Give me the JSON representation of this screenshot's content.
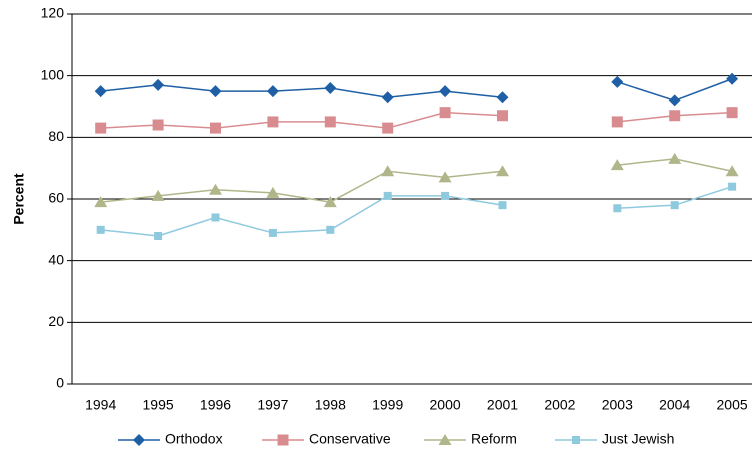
{
  "chart_data": {
    "type": "line",
    "y_label": "Percent",
    "categories": [
      "1994",
      "1995",
      "1996",
      "1997",
      "1998",
      "1999",
      "2000",
      "2001",
      "2002",
      "2003",
      "2004",
      "2005"
    ],
    "series": [
      {
        "name": "Orthodox",
        "color": "#1f5fa6",
        "marker": "diamond",
        "values": [
          95,
          97,
          95,
          95,
          96,
          93,
          95,
          93,
          null,
          98,
          92,
          99
        ]
      },
      {
        "name": "Conservative",
        "color": "#d98c8f",
        "marker": "square",
        "values": [
          83,
          84,
          83,
          85,
          85,
          83,
          88,
          87,
          null,
          85,
          87,
          88
        ]
      },
      {
        "name": "Reform",
        "color": "#b1b58a",
        "marker": "triangle",
        "values": [
          59,
          61,
          63,
          62,
          59,
          69,
          67,
          69,
          null,
          71,
          73,
          69
        ]
      },
      {
        "name": "Just Jewish",
        "color": "#8ec9de",
        "marker": "small-square",
        "values": [
          50,
          48,
          54,
          49,
          50,
          61,
          61,
          58,
          null,
          57,
          58,
          64
        ]
      }
    ],
    "ylim": [
      0,
      120
    ],
    "yticks": [
      0,
      20,
      40,
      60,
      80,
      100,
      120
    ],
    "grid": true
  }
}
